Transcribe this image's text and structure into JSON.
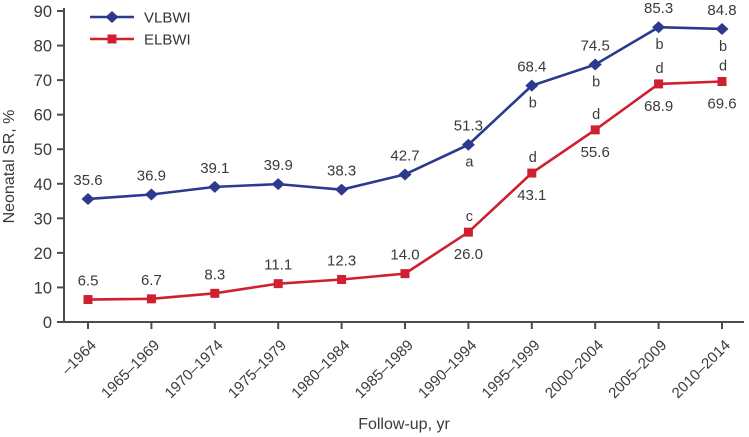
{
  "chart_data": {
    "type": "line",
    "title": "",
    "xlabel": "Follow-up, yr",
    "ylabel": "Neonatal SR, %",
    "ylim": [
      0,
      90
    ],
    "ytick_step": 10,
    "yticks": [
      0,
      10,
      20,
      30,
      40,
      50,
      60,
      70,
      80,
      90
    ],
    "grid": false,
    "categories": [
      "–1964",
      "1965–1969",
      "1970–1974",
      "1975–1979",
      "1980–1984",
      "1985–1989",
      "1990–1994",
      "1995–1999",
      "2000–2004",
      "2005–2009",
      "2010–2014"
    ],
    "series": [
      {
        "name": "VLBWI",
        "color": "#2b3a8e",
        "marker": "diamond",
        "values": [
          35.6,
          36.9,
          39.1,
          39.9,
          38.3,
          42.7,
          51.3,
          68.4,
          74.5,
          85.3,
          84.8
        ],
        "value_labels": [
          "35.6",
          "36.9",
          "39.1",
          "39.9",
          "38.3",
          "42.7",
          "51.3",
          "68.4",
          "74.5",
          "85.3",
          "84.8"
        ],
        "value_label_side": [
          "above",
          "above",
          "above",
          "above",
          "above",
          "above",
          "above",
          "above",
          "above",
          "above",
          "above"
        ],
        "annotations": [
          "",
          "",
          "",
          "",
          "",
          "",
          "a",
          "b",
          "b",
          "b",
          "b"
        ],
        "annotation_side": "below"
      },
      {
        "name": "ELBWI",
        "color": "#ce2030",
        "marker": "square",
        "values": [
          6.5,
          6.7,
          8.3,
          11.1,
          12.3,
          14.0,
          26.0,
          43.1,
          55.6,
          68.9,
          69.6
        ],
        "value_labels": [
          "6.5",
          "6.7",
          "8.3",
          "11.1",
          "12.3",
          "14.0",
          "26.0",
          "43.1",
          "55.6",
          "68.9",
          "69.6"
        ],
        "value_label_side": [
          "above",
          "above",
          "above",
          "above",
          "above",
          "above",
          "below",
          "below",
          "below",
          "below",
          "below"
        ],
        "annotations": [
          "",
          "",
          "",
          "",
          "",
          "",
          "c",
          "d",
          "d",
          "d",
          "d"
        ],
        "annotation_side": "above"
      }
    ],
    "legend": {
      "position": "top-left",
      "items": [
        {
          "label": "VLBWI",
          "color": "#2b3a8e",
          "marker": "diamond"
        },
        {
          "label": "ELBWI",
          "color": "#ce2030",
          "marker": "square"
        }
      ]
    },
    "colors": {
      "axis": "#4c4c4c",
      "tick_text": "#3a3a3a",
      "label_text": "#3a3a3a",
      "background": "#ffffff"
    }
  }
}
